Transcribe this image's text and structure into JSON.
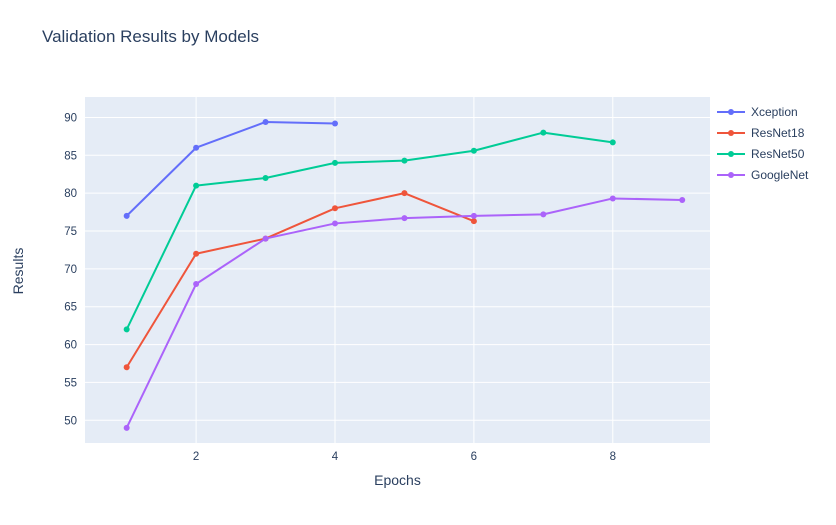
{
  "chart_data": {
    "type": "line",
    "title": "Validation Results by Models",
    "xlabel": "Epochs",
    "ylabel": "Results",
    "x_ticks": [
      2,
      4,
      6,
      8
    ],
    "y_ticks": [
      50,
      55,
      60,
      65,
      70,
      75,
      80,
      85,
      90
    ],
    "xlim": [
      0.4,
      9.4
    ],
    "ylim": [
      47,
      92.7
    ],
    "grid": true,
    "legend_position": "right",
    "plot_bg_color": "#e5ecf6",
    "grid_color": "#ffffff",
    "text_color": "#2a3f5f",
    "series": [
      {
        "name": "Xception",
        "color": "#636efa",
        "x": [
          1,
          2,
          3,
          4
        ],
        "y": [
          77,
          86,
          89.4,
          89.2
        ]
      },
      {
        "name": "ResNet18",
        "color": "#ef553b",
        "x": [
          1,
          2,
          3,
          4,
          5,
          6
        ],
        "y": [
          57,
          72,
          74,
          78,
          80,
          76.3
        ]
      },
      {
        "name": "ResNet50",
        "color": "#00cc96",
        "x": [
          1,
          2,
          3,
          4,
          5,
          6,
          7,
          8
        ],
        "y": [
          62,
          81,
          82,
          84,
          84.3,
          85.6,
          88,
          86.7
        ]
      },
      {
        "name": "GoogleNet",
        "color": "#ab63fa",
        "x": [
          1,
          2,
          3,
          4,
          5,
          6,
          7,
          8,
          9
        ],
        "y": [
          49,
          68,
          74,
          76,
          76.7,
          77,
          77.2,
          79.3,
          79.1
        ]
      }
    ]
  }
}
